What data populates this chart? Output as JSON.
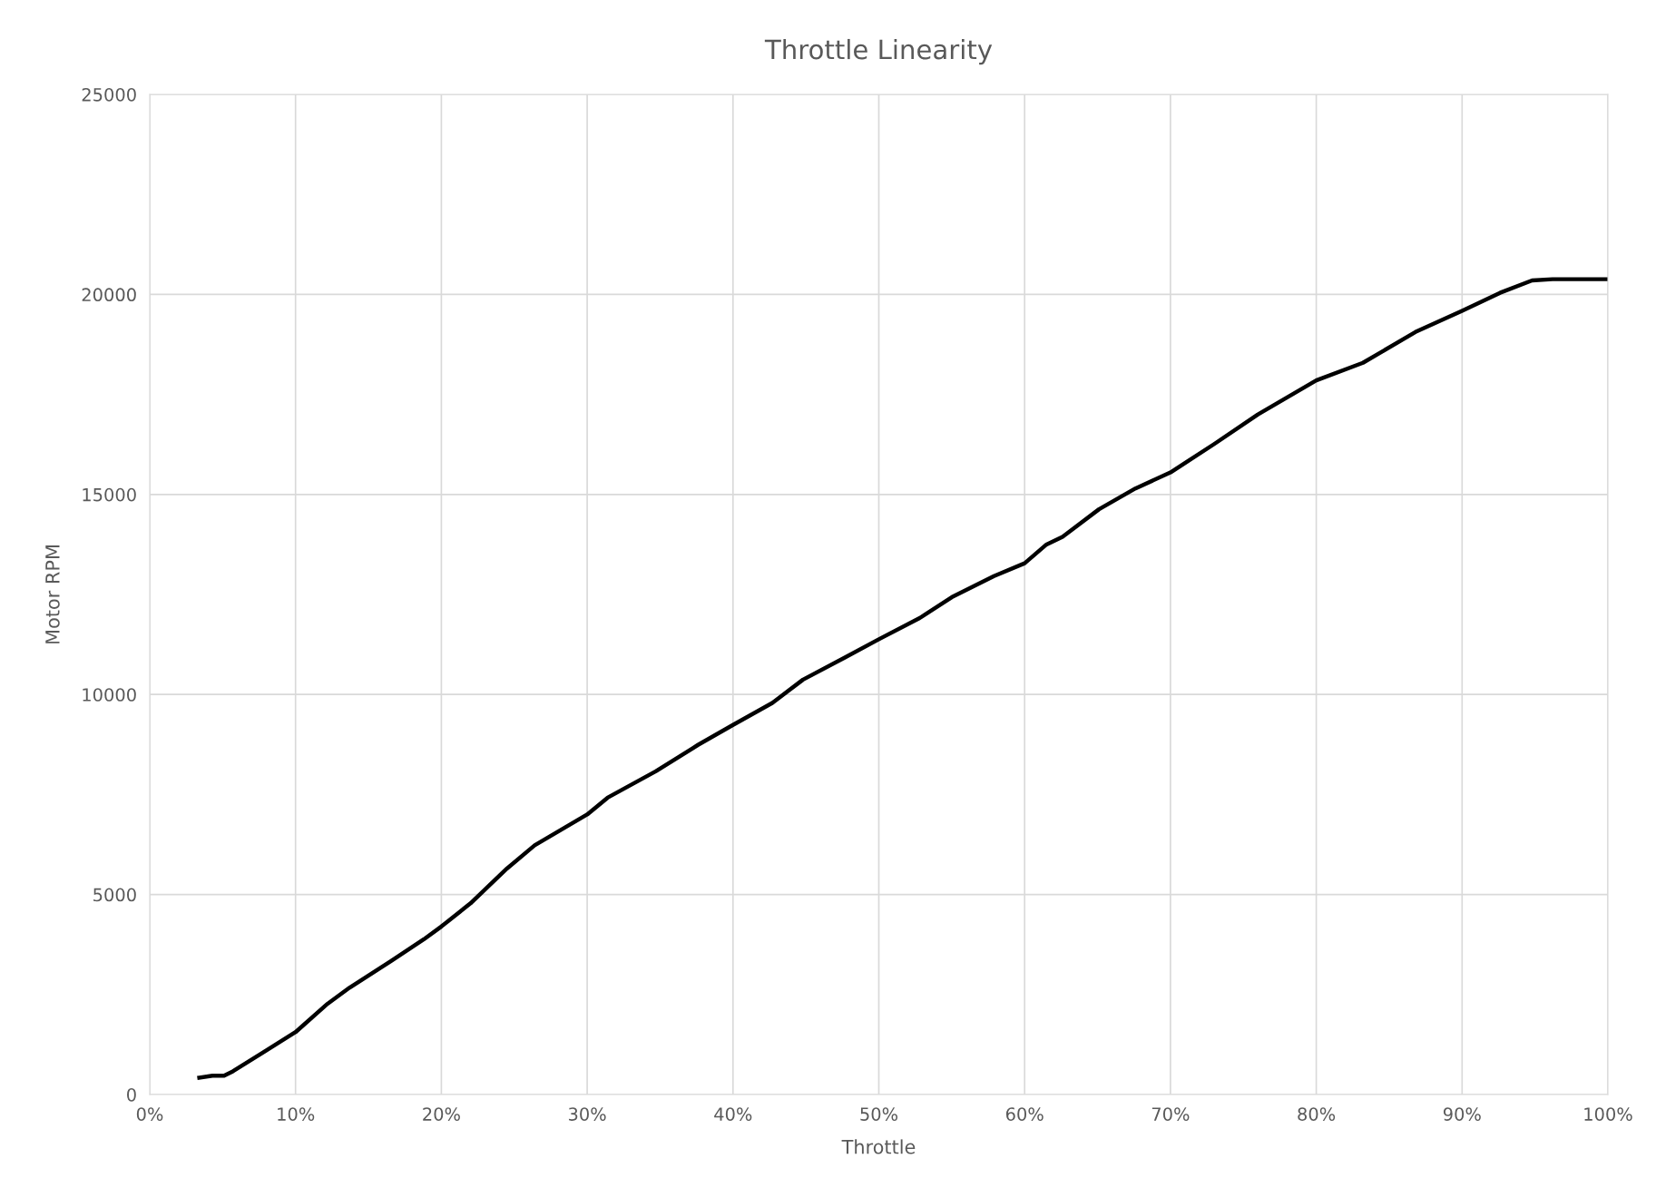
{
  "chart_data": {
    "type": "line",
    "title": "Throttle Linearity",
    "xlabel": "Throttle",
    "ylabel": "Motor RPM",
    "x": [
      3.4,
      4.3,
      5.1,
      5.7,
      7.9,
      10,
      12.2,
      13.7,
      16.6,
      18.8,
      20,
      22,
      24.5,
      26.4,
      30,
      31.4,
      34.7,
      37.6,
      40,
      42.7,
      44.8,
      47.7,
      50,
      52.8,
      55,
      57.9,
      60,
      61.5,
      62.6,
      65.1,
      67.6,
      70,
      73,
      76,
      80,
      83.2,
      86.8,
      90,
      92.6,
      94.8,
      96.2,
      99.9
    ],
    "series": [
      {
        "color": "#000000",
        "values": [
          420,
          470,
          470,
          580,
          1080,
          1560,
          2270,
          2670,
          3350,
          3880,
          4200,
          4780,
          5650,
          6230,
          7000,
          7420,
          8080,
          8740,
          9240,
          9790,
          10370,
          10930,
          11380,
          11910,
          12430,
          12960,
          13280,
          13750,
          13940,
          14630,
          15150,
          15550,
          16260,
          17000,
          17850,
          18290,
          19060,
          19590,
          20040,
          20350,
          20380,
          20380
        ]
      }
    ],
    "xlim": [
      0,
      100
    ],
    "ylim": [
      0,
      25000
    ],
    "xticks": [
      {
        "value": 0,
        "label": "0%"
      },
      {
        "value": 10,
        "label": "10%"
      },
      {
        "value": 20,
        "label": "20%"
      },
      {
        "value": 30,
        "label": "30%"
      },
      {
        "value": 40,
        "label": "40%"
      },
      {
        "value": 50,
        "label": "50%"
      },
      {
        "value": 60,
        "label": "60%"
      },
      {
        "value": 70,
        "label": "70%"
      },
      {
        "value": 80,
        "label": "80%"
      },
      {
        "value": 90,
        "label": "90%"
      },
      {
        "value": 100,
        "label": "100%"
      }
    ],
    "yticks": [
      0,
      5000,
      10000,
      15000,
      20000,
      25000
    ],
    "grid": true,
    "marker": "none",
    "line_style": "solid"
  }
}
